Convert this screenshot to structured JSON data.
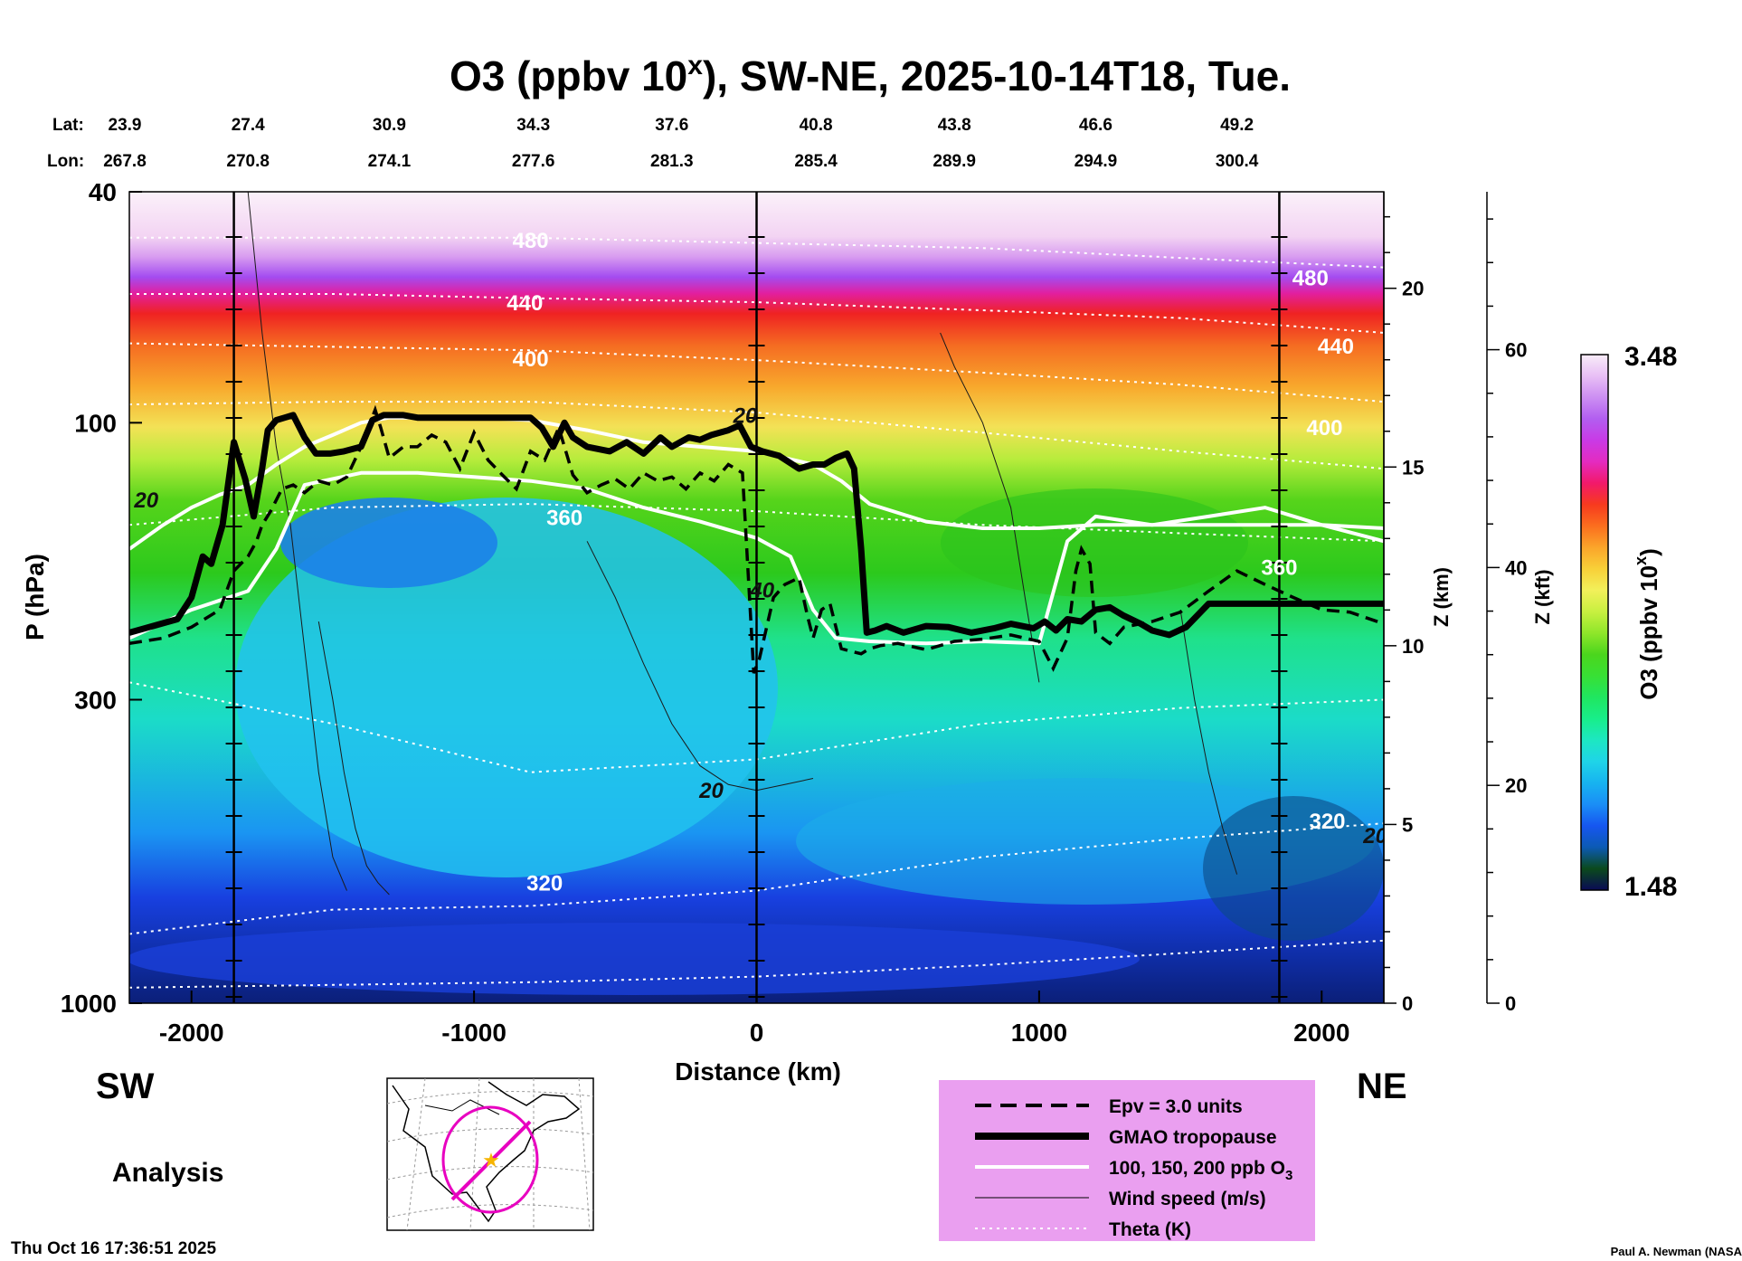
{
  "chart_data": {
    "type": "heatmap",
    "title_main": "O3 (ppbv 10",
    "title_sup": "x",
    "title_rest": "), SW-NE, 2025-10-14T18, Tue.",
    "xlabel": "Distance (km)",
    "ylabel": "P (hPa)",
    "z_km_label": "Z (km)",
    "z_kft_label": "Z (kft)",
    "colorbar_label_main": "O3 (ppbv 10",
    "colorbar_label_sup": "x",
    "colorbar_label_rest": ")",
    "colorbar_range": [
      1.48,
      3.48
    ],
    "colorbar_max_label": "3.48",
    "colorbar_min_label": "1.48",
    "xlim": [
      -2220,
      2220
    ],
    "ylim_hpa": [
      1000,
      40
    ],
    "x_ticks": [
      {
        "value": -2000,
        "label": "-2000"
      },
      {
        "value": -1000,
        "label": "-1000"
      },
      {
        "value": 0,
        "label": "0"
      },
      {
        "value": 1000,
        "label": "1000"
      },
      {
        "value": 2000,
        "label": "2000"
      }
    ],
    "p_ticks": [
      {
        "value": 40,
        "label": "40"
      },
      {
        "value": 100,
        "label": "100"
      },
      {
        "value": 300,
        "label": "300"
      },
      {
        "value": 1000,
        "label": "1000"
      }
    ],
    "z_km_ticks": [
      {
        "value": 0,
        "label": "0"
      },
      {
        "value": 5,
        "label": "5"
      },
      {
        "value": 10,
        "label": "10"
      },
      {
        "value": 15,
        "label": "15"
      },
      {
        "value": 20,
        "label": "20"
      }
    ],
    "z_kft_ticks": [
      {
        "value": 0,
        "label": "0"
      },
      {
        "value": 20,
        "label": "20"
      },
      {
        "value": 40,
        "label": "40"
      },
      {
        "value": 60,
        "label": "60"
      }
    ],
    "lat_label": "Lat:",
    "lon_label": "Lon:",
    "lat_values": [
      "23.9",
      "27.4",
      "30.9",
      "34.3",
      "37.6",
      "40.8",
      "43.8",
      "46.6",
      "49.2"
    ],
    "lon_values": [
      "267.8",
      "270.8",
      "274.1",
      "277.6",
      "281.3",
      "285.4",
      "289.9",
      "294.9",
      "300.4"
    ],
    "geo_positions_km": [
      -2300,
      -1800,
      -1300,
      -790,
      -300,
      210,
      700,
      1200,
      1700
    ],
    "vertical_marker_lines_km": [
      -1850,
      0,
      1850
    ],
    "tropopause_hpa": {
      "x": [
        -2220,
        -2150,
        -2050,
        -2000,
        -1960,
        -1930,
        -1890,
        -1850,
        -1810,
        -1780,
        -1750,
        -1730,
        -1700,
        -1670,
        -1640,
        -1600,
        -1560,
        -1510,
        -1460,
        -1400,
        -1360,
        -1320,
        -1280,
        -1250,
        -1200,
        -1150,
        -1100,
        -1000,
        -900,
        -800,
        -760,
        -720,
        -680,
        -650,
        -600,
        -520,
        -460,
        -400,
        -340,
        -300,
        -240,
        -200,
        -160,
        -100,
        -60,
        -20,
        20,
        80,
        150,
        200,
        240,
        280,
        320,
        345,
        370,
        390,
        420,
        460,
        520,
        600,
        680,
        760,
        840,
        900,
        980,
        1020,
        1060,
        1100,
        1150,
        1200,
        1250,
        1300,
        1360,
        1400,
        1460,
        1520,
        1600,
        1700,
        1800,
        1900,
        2000,
        2100,
        2220
      ],
      "p": [
        230,
        225,
        218,
        200,
        170,
        175,
        150,
        108,
        125,
        145,
        120,
        103,
        99,
        98,
        97,
        106,
        113,
        113,
        112,
        110,
        99,
        97,
        97,
        97,
        98,
        98,
        98,
        98,
        98,
        98,
        102,
        110,
        100,
        106,
        110,
        112,
        108,
        113,
        106,
        110,
        106,
        107,
        105,
        103,
        101,
        110,
        112,
        114,
        120,
        118,
        118,
        115,
        113,
        120,
        165,
        230,
        228,
        224,
        230,
        224,
        225,
        230,
        226,
        222,
        226,
        220,
        228,
        218,
        220,
        210,
        208,
        215,
        222,
        228,
        232,
        225,
        205,
        205,
        205,
        205,
        205,
        205,
        205
      ]
    },
    "epv_hpa": {
      "x": [
        -2220,
        -2100,
        -2000,
        -1900,
        -1850,
        -1800,
        -1770,
        -1750,
        -1720,
        -1680,
        -1640,
        -1600,
        -1550,
        -1500,
        -1450,
        -1400,
        -1350,
        -1330,
        -1300,
        -1250,
        -1200,
        -1150,
        -1100,
        -1050,
        -1000,
        -950,
        -900,
        -850,
        -800,
        -750,
        -700,
        -650,
        -600,
        -550,
        -500,
        -450,
        -400,
        -350,
        -300,
        -250,
        -200,
        -150,
        -100,
        -50,
        -10,
        10,
        60,
        100,
        150,
        180,
        200,
        230,
        260,
        300,
        340,
        370,
        400,
        440,
        500,
        600,
        700,
        800,
        900,
        1000,
        1050,
        1100,
        1130,
        1150,
        1180,
        1200,
        1250,
        1300,
        1400,
        1500,
        1600,
        1700,
        1800,
        1900,
        2000,
        2100,
        2220
      ],
      "p": [
        240,
        235,
        225,
        210,
        180,
        170,
        160,
        150,
        142,
        130,
        128,
        132,
        126,
        128,
        124,
        110,
        95,
        102,
        115,
        110,
        110,
        105,
        108,
        120,
        104,
        116,
        123,
        130,
        112,
        116,
        102,
        123,
        132,
        128,
        125,
        130,
        122,
        126,
        124,
        130,
        122,
        126,
        118,
        122,
        270,
        255,
        200,
        190,
        185,
        215,
        235,
        210,
        205,
        245,
        248,
        250,
        245,
        242,
        240,
        246,
        238,
        236,
        232,
        238,
        265,
        235,
        180,
        165,
        175,
        230,
        240,
        225,
        220,
        212,
        195,
        180,
        190,
        200,
        210,
        212,
        222
      ]
    },
    "ozone_contours": [
      {
        "label": "100 ppb (upper)",
        "x": [
          -2220,
          -2100,
          -2000,
          -1900,
          -1800,
          -1700,
          -1600,
          -1500,
          -1400,
          -1300,
          -1200,
          -1000,
          -800,
          -600,
          -400,
          -200,
          0,
          200,
          300,
          400,
          600,
          800,
          1000,
          1200,
          1400,
          1600,
          1800,
          2000,
          2220
        ],
        "p": [
          165,
          150,
          140,
          133,
          128,
          118,
          110,
          105,
          100,
          98,
          98,
          98,
          99,
          103,
          108,
          110,
          112,
          118,
          126,
          138,
          148,
          152,
          152,
          150,
          150,
          150,
          150,
          150,
          152
        ]
      },
      {
        "label": "100 ppb (lower)",
        "x": [
          -2220,
          -2000,
          -1800,
          -1700,
          -1600,
          -1400,
          -1200,
          -1000,
          -800,
          -600,
          -400,
          -200,
          0,
          120,
          200,
          280,
          400,
          600,
          800,
          1000,
          1100,
          1200,
          1400,
          1600,
          1800,
          2000,
          2220
        ],
        "p": [
          235,
          210,
          195,
          165,
          128,
          122,
          122,
          124,
          126,
          130,
          140,
          148,
          158,
          170,
          210,
          235,
          238,
          240,
          238,
          240,
          160,
          145,
          150,
          145,
          140,
          150,
          160
        ]
      }
    ],
    "contour_labels": [
      {
        "text": "480",
        "x": -800,
        "p": 50
      },
      {
        "text": "440",
        "x": -820,
        "p": 64
      },
      {
        "text": "400",
        "x": -800,
        "p": 80
      },
      {
        "text": "360",
        "x": -680,
        "p": 150
      },
      {
        "text": "320",
        "x": -750,
        "p": 640
      },
      {
        "text": "440",
        "x": 2050,
        "p": 76
      },
      {
        "text": "400",
        "x": 2010,
        "p": 105
      },
      {
        "text": "360",
        "x": 1850,
        "p": 183
      },
      {
        "text": "320",
        "x": 2020,
        "p": 500
      },
      {
        "text": "480",
        "x": 1960,
        "p": 58
      },
      {
        "text": "20",
        "x": -2160,
        "p": 140
      },
      {
        "text": "20",
        "x": -40,
        "p": 100
      },
      {
        "text": "40",
        "x": 20,
        "p": 200
      },
      {
        "text": "20",
        "x": -160,
        "p": 443
      },
      {
        "text": "20",
        "x": 2190,
        "p": 530
      }
    ],
    "wind_contours": [
      {
        "x": [
          -1800,
          -1750,
          -1700,
          -1650,
          -1550,
          -1500,
          -1450
        ],
        "p": [
          40,
          70,
          110,
          150,
          400,
          560,
          640
        ]
      },
      {
        "x": [
          -1550,
          -1500,
          -1460,
          -1420,
          -1380,
          -1340,
          -1300
        ],
        "p": [
          220,
          300,
          400,
          500,
          580,
          620,
          650
        ]
      },
      {
        "x": [
          -600,
          -500,
          -400,
          -300,
          -200,
          -100,
          0,
          100,
          200
        ],
        "p": [
          160,
          200,
          260,
          330,
          390,
          420,
          430,
          420,
          410
        ]
      },
      {
        "x": [
          650,
          700,
          800,
          900,
          950,
          1000
        ],
        "p": [
          70,
          80,
          100,
          140,
          200,
          280
        ]
      },
      {
        "x": [
          1500,
          1550,
          1600,
          1650,
          1700
        ],
        "p": [
          210,
          300,
          400,
          500,
          600
        ]
      }
    ],
    "theta_lines": [
      {
        "x": [
          -2220,
          -1500,
          -800,
          0,
          800,
          1500,
          2220
        ],
        "p": [
          48,
          48,
          48,
          49,
          50,
          52,
          54
        ]
      },
      {
        "x": [
          -2220,
          -1500,
          -800,
          0,
          800,
          1500,
          2220
        ],
        "p": [
          60,
          60,
          61,
          62,
          64,
          66,
          70
        ]
      },
      {
        "x": [
          -2220,
          -1500,
          -800,
          0,
          800,
          1500,
          2220
        ],
        "p": [
          73,
          74,
          75,
          78,
          82,
          86,
          92
        ]
      },
      {
        "x": [
          -2220,
          -1500,
          -800,
          0,
          800,
          1500,
          2220
        ],
        "p": [
          93,
          92,
          92,
          96,
          104,
          112,
          120
        ]
      },
      {
        "x": [
          -2220,
          -1500,
          -800,
          0,
          800,
          1500,
          2220
        ],
        "p": [
          150,
          140,
          138,
          142,
          150,
          155,
          160
        ]
      },
      {
        "x": [
          -2220,
          -1500,
          -800,
          0,
          800,
          1500,
          2220
        ],
        "p": [
          280,
          330,
          400,
          380,
          330,
          310,
          300
        ]
      },
      {
        "x": [
          -2220,
          -1500,
          -800,
          0,
          800,
          1500,
          2220
        ],
        "p": [
          760,
          690,
          680,
          640,
          560,
          520,
          490
        ]
      },
      {
        "x": [
          -2220,
          -1500,
          -800,
          0,
          800,
          1500,
          2220
        ],
        "p": [
          940,
          930,
          920,
          900,
          860,
          820,
          780
        ]
      }
    ],
    "legend": [
      {
        "style": "dashed",
        "label": "Epv = 3.0 units"
      },
      {
        "style": "thick",
        "label": "GMAO tropopause"
      },
      {
        "style": "white",
        "label": "100, 150, 200 ppb O",
        "sub": "3"
      },
      {
        "style": "thin",
        "label": "Wind speed (m/s)"
      },
      {
        "style": "dotted",
        "label": "Theta (K)"
      }
    ],
    "sw_label": "SW",
    "ne_label": "NE",
    "analysis_label": "Analysis"
  },
  "footer": {
    "timestamp": "Thu Oct 16 17:36:51 2025",
    "credit": "Paul A. Newman (NASA"
  },
  "colors": {
    "colorbar_stops": [
      "#0a0a55",
      "#0b4a1c",
      "#0c5ab4",
      "#1656f0",
      "#1a8ef6",
      "#17b3f0",
      "#1fd4e8",
      "#1de7c2",
      "#18ee8a",
      "#20e660",
      "#38e035",
      "#4bd61d",
      "#8fe62a",
      "#c8f040",
      "#f2f05a",
      "#f8d038",
      "#fba52a",
      "#fb6e1e",
      "#f73a1e",
      "#f2196a",
      "#e42bc0",
      "#c93ae6",
      "#b25ef0",
      "#cc8ef2",
      "#e8bff5",
      "#f8ecf8"
    ],
    "legend_bg": "#ea9ff0",
    "map_highlight": "#e800c0"
  }
}
